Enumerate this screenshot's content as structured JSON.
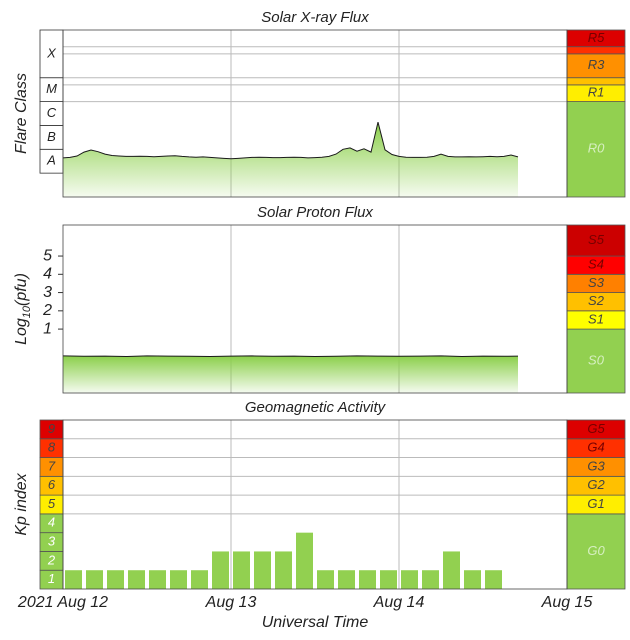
{
  "chart_data": [
    {
      "type": "area",
      "title": "Solar X-ray Flux",
      "ylabel": "Flare Class",
      "ylim": [
        -9,
        -2
      ],
      "ybands": [
        {
          "label": "A",
          "range": [
            -8,
            -7
          ]
        },
        {
          "label": "B",
          "range": [
            -7,
            -6
          ]
        },
        {
          "label": "C",
          "range": [
            -6,
            -5
          ]
        },
        {
          "label": "M",
          "range": [
            -5,
            -4
          ]
        },
        {
          "label": "X",
          "range": [
            -4,
            -2
          ]
        }
      ],
      "scale_thresholds": [
        -5,
        -4.3,
        -4,
        -3,
        -2.7
      ],
      "scale_levels": [
        {
          "label": "R0",
          "color": "#92d050",
          "text_color": "#d6efc0"
        },
        {
          "label": "R1",
          "color": "#ffee00",
          "text_color": "#444"
        },
        {
          "color": "#ffc000"
        },
        {
          "label": "R3",
          "color": "#ff9000",
          "text_color": "#444"
        },
        {
          "color": "#ff3000"
        },
        {
          "label": "R5",
          "color": "#dd0000",
          "text_color": "#700"
        }
      ],
      "threshold_lines": true,
      "color": "#8bcf4a",
      "line_color": "#1a1a1a",
      "x": [
        0,
        1,
        2,
        3,
        4,
        5,
        6,
        7,
        8,
        9,
        10,
        11,
        12,
        13,
        14,
        15,
        16,
        17,
        18,
        19,
        20,
        21,
        22,
        23,
        24,
        25,
        26,
        27,
        28,
        29,
        30,
        31,
        32,
        33,
        34,
        35,
        36,
        37,
        38,
        39,
        40,
        41,
        42,
        43,
        44,
        45,
        46,
        47,
        48,
        49,
        50,
        51,
        52,
        53,
        54,
        55,
        56,
        57,
        58,
        59,
        60,
        61,
        62,
        63,
        64,
        65
      ],
      "values": [
        -7.36,
        -7.34,
        -7.28,
        -7.12,
        -7.03,
        -7.1,
        -7.2,
        -7.26,
        -7.28,
        -7.3,
        -7.3,
        -7.29,
        -7.3,
        -7.31,
        -7.3,
        -7.28,
        -7.27,
        -7.3,
        -7.32,
        -7.33,
        -7.32,
        -7.34,
        -7.36,
        -7.38,
        -7.4,
        -7.38,
        -7.36,
        -7.34,
        -7.33,
        -7.34,
        -7.35,
        -7.35,
        -7.34,
        -7.33,
        -7.34,
        -7.36,
        -7.35,
        -7.33,
        -7.3,
        -7.2,
        -7.0,
        -6.94,
        -7.08,
        -6.98,
        -7.12,
        -5.86,
        -7.02,
        -7.22,
        -7.3,
        -7.33,
        -7.34,
        -7.34,
        -7.33,
        -7.3,
        -7.2,
        -7.3,
        -7.32,
        -7.32,
        -7.31,
        -7.32,
        -7.31,
        -7.3,
        -7.31,
        -7.3,
        -7.24,
        -7.32
      ]
    },
    {
      "type": "area",
      "title": "Solar Proton Flux",
      "ylabel_parts": [
        "Log",
        "10",
        "(pfu)"
      ],
      "ylim": [
        -2.5,
        6.7
      ],
      "yticks": [
        1,
        2,
        3,
        4,
        5
      ],
      "scale_thresholds": [
        1,
        2,
        3,
        4,
        5
      ],
      "scale_levels": [
        {
          "label": "S0",
          "color": "#92d050",
          "text_color": "#d6efc0"
        },
        {
          "label": "S1",
          "color": "#ffff00",
          "text_color": "#444"
        },
        {
          "label": "S2",
          "color": "#ffc000",
          "text_color": "#444"
        },
        {
          "label": "S3",
          "color": "#ff8000",
          "text_color": "#444"
        },
        {
          "label": "S4",
          "color": "#ff0000",
          "text_color": "#700"
        },
        {
          "label": "S5",
          "color": "#cc0000",
          "text_color": "#700"
        }
      ],
      "color": "#8bcf4a",
      "line_color": "#1a1a1a",
      "x": [
        0,
        3,
        6,
        9,
        12,
        15,
        18,
        21,
        24,
        27,
        30,
        33,
        36,
        39,
        42,
        45,
        48,
        51,
        54,
        57,
        60,
        63,
        65
      ],
      "values": [
        -0.47,
        -0.49,
        -0.48,
        -0.5,
        -0.47,
        -0.48,
        -0.49,
        -0.5,
        -0.48,
        -0.47,
        -0.49,
        -0.48,
        -0.5,
        -0.49,
        -0.47,
        -0.48,
        -0.49,
        -0.48,
        -0.47,
        -0.5,
        -0.48,
        -0.49,
        -0.48
      ]
    },
    {
      "type": "bar",
      "title": "Geomagnetic Activity",
      "ylabel": "Kp index",
      "ylim": [
        0,
        9
      ],
      "yticks": [
        1,
        2,
        3,
        4,
        5,
        6,
        7,
        8,
        9
      ],
      "ytick_colors": [
        "#92d050",
        "#92d050",
        "#92d050",
        "#92d050",
        "#ffee00",
        "#ffc000",
        "#ff9000",
        "#ff3000",
        "#dd0000"
      ],
      "ytick_text_colors": [
        "#ffffff",
        "#ffffff",
        "#ffffff",
        "#ffffff",
        "#444",
        "#444",
        "#444",
        "#444",
        "#444"
      ],
      "scale_thresholds": [
        4,
        5,
        6,
        7,
        8
      ],
      "scale_levels": [
        {
          "label": "G0",
          "color": "#92d050",
          "text_color": "#d6efc0"
        },
        {
          "label": "G1",
          "color": "#ffee00",
          "text_color": "#444"
        },
        {
          "label": "G2",
          "color": "#ffc000",
          "text_color": "#444"
        },
        {
          "label": "G3",
          "color": "#ff9000",
          "text_color": "#444"
        },
        {
          "label": "G4",
          "color": "#ff3000",
          "text_color": "#700"
        },
        {
          "label": "G5",
          "color": "#dd0000",
          "text_color": "#700"
        }
      ],
      "threshold_lines": true,
      "color": "#92d050",
      "x": [
        0,
        3,
        6,
        9,
        12,
        15,
        18,
        21,
        24,
        27,
        30,
        33,
        36,
        39,
        42,
        45,
        48,
        51,
        54,
        57,
        60
      ],
      "values": [
        1,
        1,
        1,
        1,
        1,
        1,
        1,
        2,
        2,
        2,
        2,
        3,
        1,
        1,
        1,
        1,
        1,
        1,
        2,
        1,
        1
      ],
      "xlim": [
        0,
        72
      ],
      "xticks": [
        {
          "value": 0,
          "label": "2021 Aug 12"
        },
        {
          "value": 24,
          "label": "Aug 13"
        },
        {
          "value": 48,
          "label": "Aug 14"
        },
        {
          "value": 72,
          "label": "Aug 15"
        }
      ],
      "xlabel": "Universal Time"
    }
  ]
}
